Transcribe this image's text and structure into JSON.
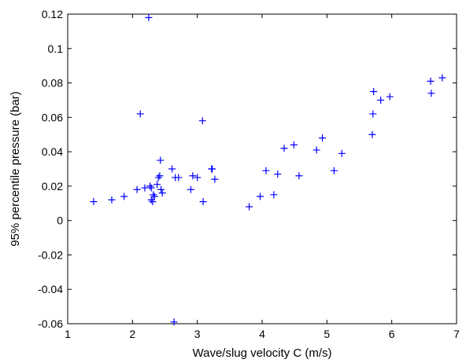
{
  "chart_data": {
    "type": "scatter",
    "title": "",
    "xlabel": "Wave/slug velocity C (m/s)",
    "ylabel": "95% percentile pressure (bar)",
    "xlim": [
      1,
      7
    ],
    "ylim": [
      -0.06,
      0.12
    ],
    "xticks": [
      1,
      2,
      3,
      4,
      5,
      6,
      7
    ],
    "xtick_labels": [
      "1",
      "2",
      "3",
      "4",
      "5",
      "6",
      "7"
    ],
    "yticks": [
      -0.06,
      -0.04,
      -0.02,
      0,
      0.02,
      0.04,
      0.06,
      0.08,
      0.1,
      0.12
    ],
    "ytick_labels": [
      "-0.06",
      "-0.04",
      "-0.02",
      "0",
      "0.02",
      "0.04",
      "0.06",
      "0.08",
      "0.1",
      "0.12"
    ],
    "grid": false,
    "legend": "none",
    "marker": "+",
    "colors": {
      "marker": "#0000ff",
      "axis": "#000000",
      "background": "#ffffff"
    },
    "series": [
      {
        "x": [
          1.4,
          1.68,
          1.87,
          2.07,
          2.12,
          2.19,
          2.25,
          2.27,
          2.29,
          2.29,
          2.31,
          2.32,
          2.34,
          2.38,
          2.4,
          2.42,
          2.43,
          2.44,
          2.46,
          2.61,
          2.64,
          2.66,
          2.71,
          2.9,
          2.93,
          3.0,
          3.08,
          3.09,
          3.22,
          3.23,
          3.27,
          3.8,
          3.97,
          4.06,
          4.18,
          4.24,
          4.34,
          4.49,
          4.57,
          4.84,
          4.93,
          5.11,
          5.23,
          5.7,
          5.71,
          5.72,
          5.83,
          5.97,
          6.6,
          6.61,
          6.78
        ],
        "y": [
          0.011,
          0.012,
          0.014,
          0.018,
          0.062,
          0.019,
          0.118,
          0.02,
          0.012,
          0.019,
          0.011,
          0.015,
          0.014,
          0.021,
          0.025,
          0.026,
          0.035,
          0.018,
          0.016,
          0.03,
          -0.059,
          0.025,
          0.025,
          0.018,
          0.026,
          0.025,
          0.058,
          0.011,
          0.03,
          0.03,
          0.024,
          0.008,
          0.014,
          0.029,
          0.015,
          0.027,
          0.042,
          0.044,
          0.026,
          0.041,
          0.048,
          0.029,
          0.039,
          0.05,
          0.062,
          0.075,
          0.07,
          0.072,
          0.081,
          0.074,
          0.083
        ]
      }
    ]
  }
}
